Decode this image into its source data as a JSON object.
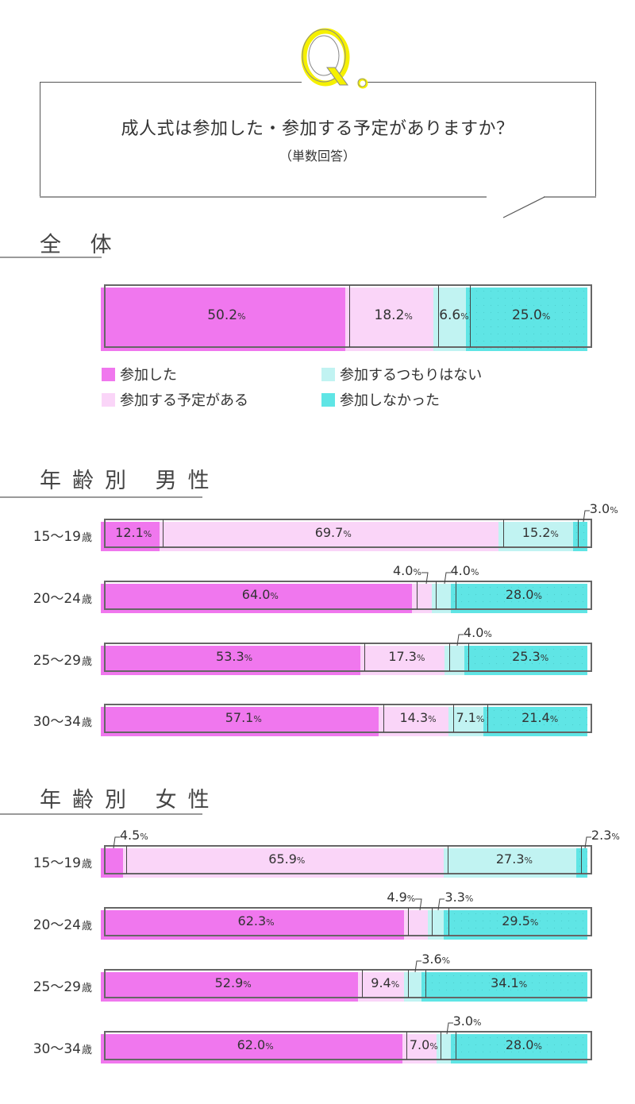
{
  "question": {
    "logo": "Q.",
    "title": "成人式は参加した・参加する予定がありますか？",
    "subtitle": "（単数回答）"
  },
  "sections": {
    "overall": {
      "title": "全 体"
    },
    "male": {
      "title": "年齢別 男性"
    },
    "female": {
      "title": "年齢別 女性"
    }
  },
  "legend": [
    {
      "label": "参加した",
      "color": "#f077ee"
    },
    {
      "label": "参加する予定がある",
      "color": "#fad5f8"
    },
    {
      "label": "参加するつもりはない",
      "color": "#c1f3f2"
    },
    {
      "label": "参加しなかった",
      "color": "#5fe5e5"
    }
  ],
  "chart_data": {
    "type": "bar",
    "orientation": "horizontal-stacked-100",
    "title": "成人式は参加した・参加する予定がありますか？（単数回答）",
    "unit": "%",
    "series_names": [
      "参加した",
      "参加する予定がある",
      "参加するつもりはない",
      "参加しなかった"
    ],
    "colors": [
      "#f077ee",
      "#fad5f8",
      "#c1f3f2",
      "#5fe5e5"
    ],
    "groups": [
      {
        "name": "全 体",
        "rows": [
          {
            "label": "",
            "values": [
              50.2,
              18.2,
              6.6,
              25.0
            ],
            "display": [
              "50.2",
              "18.2",
              "6.6",
              "25.0"
            ]
          }
        ]
      },
      {
        "name": "年齢別 男性",
        "rows": [
          {
            "label": "15〜19",
            "values": [
              12.1,
              69.7,
              15.2,
              3.0
            ],
            "display": [
              "12.1",
              "69.7",
              "15.2",
              "3.0"
            ]
          },
          {
            "label": "20〜24",
            "values": [
              64.0,
              4.0,
              4.0,
              28.0
            ],
            "display": [
              "64.0",
              "4.0",
              "4.0",
              "28.0"
            ]
          },
          {
            "label": "25〜29",
            "values": [
              53.3,
              17.3,
              4.0,
              25.3
            ],
            "display": [
              "53.3",
              "17.3",
              "4.0",
              "25.3"
            ]
          },
          {
            "label": "30〜34",
            "values": [
              57.1,
              14.3,
              7.1,
              21.4
            ],
            "display": [
              "57.1",
              "14.3",
              "7.1",
              "21.4"
            ]
          }
        ]
      },
      {
        "name": "年齢別 女性",
        "rows": [
          {
            "label": "15〜19",
            "values": [
              4.5,
              65.9,
              27.3,
              2.3
            ],
            "display": [
              "4.5",
              "65.9",
              "27.3",
              "2.3"
            ]
          },
          {
            "label": "20〜24",
            "values": [
              62.3,
              4.9,
              3.3,
              29.5
            ],
            "display": [
              "62.3",
              "4.9",
              "3.3",
              "29.5"
            ]
          },
          {
            "label": "25〜29",
            "values": [
              52.9,
              9.4,
              3.6,
              34.1
            ],
            "display": [
              "52.9",
              "9.4",
              "3.6",
              "34.1"
            ]
          },
          {
            "label": "30〜34",
            "values": [
              62.0,
              7.0,
              3.0,
              28.0
            ],
            "display": [
              "62.0",
              "7.0",
              "3.0",
              "28.0"
            ]
          }
        ]
      }
    ]
  },
  "labels": {
    "age_suffix": "歳",
    "pct": "%"
  }
}
